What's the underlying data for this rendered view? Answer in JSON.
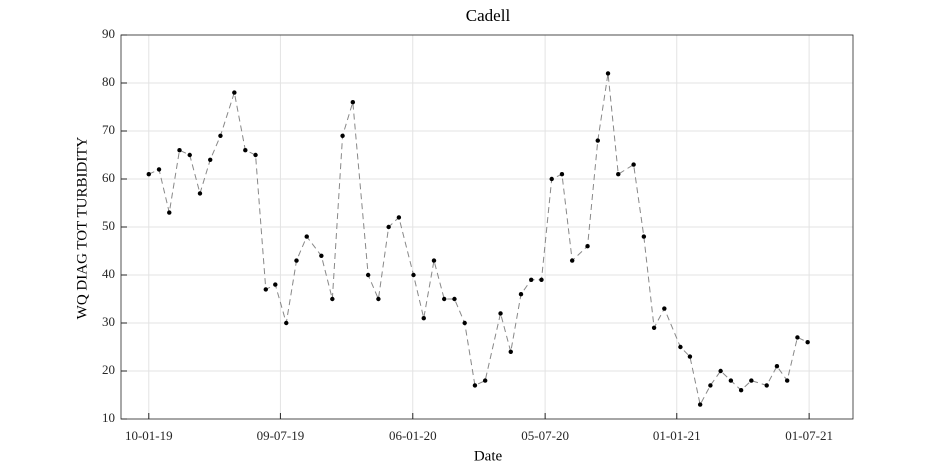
{
  "chart_data": {
    "type": "line",
    "title": "Cadell",
    "xlabel": "Date",
    "ylabel": "WQ DIAG TOT TURBIDITY",
    "x": [
      "2019-01-10",
      "2019-01-24",
      "2019-02-07",
      "2019-02-21",
      "2019-03-07",
      "2019-03-21",
      "2019-04-04",
      "2019-04-18",
      "2019-05-07",
      "2019-05-22",
      "2019-06-05",
      "2019-06-19",
      "2019-07-02",
      "2019-07-17",
      "2019-07-31",
      "2019-08-14",
      "2019-09-03",
      "2019-09-18",
      "2019-10-02",
      "2019-10-16",
      "2019-11-06",
      "2019-11-20",
      "2019-12-04",
      "2019-12-18",
      "2020-01-07",
      "2020-01-21",
      "2020-02-04",
      "2020-02-18",
      "2020-03-03",
      "2020-03-17",
      "2020-03-31",
      "2020-04-14",
      "2020-05-05",
      "2020-05-19",
      "2020-06-02",
      "2020-06-16",
      "2020-06-30",
      "2020-07-14",
      "2020-07-28",
      "2020-08-11",
      "2020-09-01",
      "2020-09-15",
      "2020-09-29",
      "2020-10-13",
      "2020-11-03",
      "2020-11-17",
      "2020-12-01",
      "2020-12-15",
      "2021-01-06",
      "2021-01-19",
      "2021-02-02",
      "2021-02-16",
      "2021-03-02",
      "2021-03-16",
      "2021-03-30",
      "2021-04-13",
      "2021-05-04",
      "2021-05-18",
      "2021-06-01",
      "2021-06-15",
      "2021-06-29"
    ],
    "series": [
      {
        "color": "#888888",
        "values": [
          61,
          62,
          53,
          66,
          65,
          57,
          64,
          69,
          78,
          66,
          65,
          37,
          38,
          30,
          43,
          48,
          44,
          35,
          69,
          76,
          40,
          35,
          50,
          52,
          40,
          31,
          43,
          35,
          35,
          30,
          17,
          18,
          32,
          24,
          36,
          39,
          39,
          60,
          61,
          43,
          46,
          68,
          82,
          61,
          63,
          48,
          29,
          33,
          25,
          23,
          13,
          17,
          20,
          18,
          16,
          18,
          17,
          21,
          18,
          27,
          26
        ]
      }
    ],
    "marker_color": "#000000",
    "xlim": [
      "2018-12-03",
      "2021-08-30"
    ],
    "xticks": [
      {
        "value": "2019-01-10",
        "label": "10-01-19"
      },
      {
        "value": "2019-07-09",
        "label": "09-07-19"
      },
      {
        "value": "2020-01-06",
        "label": "06-01-20"
      },
      {
        "value": "2020-07-05",
        "label": "05-07-20"
      },
      {
        "value": "2021-01-01",
        "label": "01-01-21"
      },
      {
        "value": "2021-07-01",
        "label": "01-07-21"
      }
    ],
    "ylim": [
      10,
      90
    ],
    "yticks": [
      10,
      20,
      30,
      40,
      50,
      60,
      70,
      80,
      90
    ],
    "grid": true
  }
}
